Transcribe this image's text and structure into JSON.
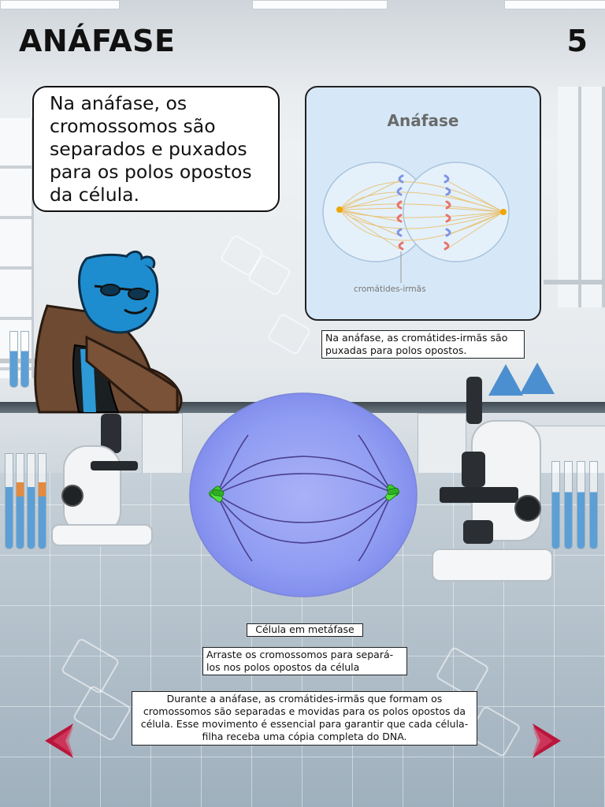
{
  "header": {
    "title": "ANÁFASE",
    "page_number": "5"
  },
  "speech_bubble": {
    "text": "Na anáfase, os cromossomos são separados e puxados para os polos opostos da célula."
  },
  "diagram": {
    "title": "Anáfase",
    "label": "cromátides-irmãs",
    "caption": "Na anáfase, as cromátides-irmãs são puxadas para polos opostos."
  },
  "cell": {
    "caption": "Célula em metáfase"
  },
  "instruction": {
    "text": "Arraste os cromossomos para separá-los nos polos opostos da célula"
  },
  "explanation": {
    "text": "Durante a anáfase, as cromátides-irmãs que formam os cromossomos são separadas e movidas para os polos opostos da célula. Esse movimento é essencial para garantir que cada célula-filha receba uma cópia completa do DNA."
  },
  "navigation": {
    "prev_icon": "arrow-left-icon",
    "next_icon": "arrow-right-icon"
  },
  "colors": {
    "accent_red": "#b8163c",
    "cell_fill": "#8f9cf2",
    "chromosome_green": "#3ccf2e",
    "diagram_bg": "#d6e8f7"
  }
}
